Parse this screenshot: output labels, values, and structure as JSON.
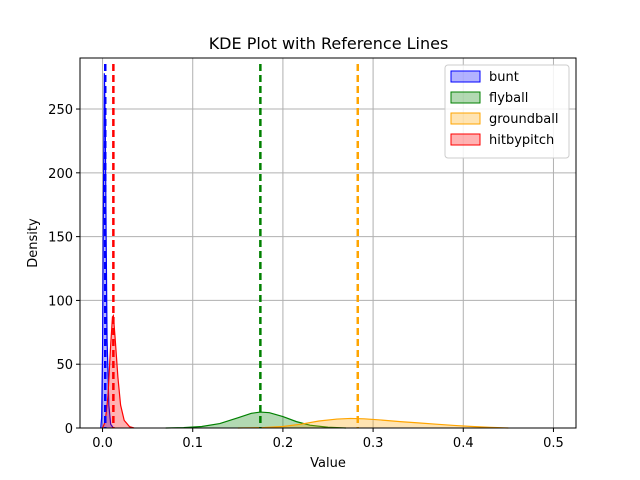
{
  "chart_data": {
    "type": "area",
    "title": "KDE Plot with Reference Lines",
    "xlabel": "Value",
    "ylabel": "Density",
    "xlim": [
      -0.025,
      0.525
    ],
    "ylim": [
      0,
      290
    ],
    "xticks": [
      0.0,
      0.1,
      0.2,
      0.3,
      0.4,
      0.5
    ],
    "xtick_labels": [
      "0.0",
      "0.1",
      "0.2",
      "0.3",
      "0.4",
      "0.5"
    ],
    "yticks": [
      0,
      50,
      100,
      150,
      200,
      250
    ],
    "ytick_labels": [
      "0",
      "50",
      "100",
      "150",
      "200",
      "250"
    ],
    "grid": true,
    "legend_position": "top-right",
    "series": [
      {
        "name": "bunt",
        "color": "#0000ff",
        "points": [
          [
            -0.002,
            0
          ],
          [
            -0.001,
            8
          ],
          [
            0.0,
            60
          ],
          [
            0.001,
            180
          ],
          [
            0.002,
            278
          ],
          [
            0.003,
            240
          ],
          [
            0.004,
            150
          ],
          [
            0.005,
            70
          ],
          [
            0.007,
            18
          ],
          [
            0.009,
            3
          ],
          [
            0.012,
            0
          ]
        ],
        "reference_line": 0.003
      },
      {
        "name": "flyball",
        "color": "#008000",
        "points": [
          [
            0.07,
            0
          ],
          [
            0.09,
            0.3
          ],
          [
            0.11,
            1.2
          ],
          [
            0.13,
            3.5
          ],
          [
            0.15,
            8
          ],
          [
            0.165,
            11.5
          ],
          [
            0.175,
            12.5
          ],
          [
            0.185,
            12
          ],
          [
            0.2,
            9
          ],
          [
            0.215,
            5
          ],
          [
            0.23,
            2.2
          ],
          [
            0.25,
            0.6
          ],
          [
            0.27,
            0
          ]
        ],
        "reference_line": 0.175
      },
      {
        "name": "groundball",
        "color": "#ffa500",
        "points": [
          [
            0.15,
            0
          ],
          [
            0.18,
            0.4
          ],
          [
            0.2,
            1.2
          ],
          [
            0.22,
            3
          ],
          [
            0.24,
            5.5
          ],
          [
            0.26,
            7
          ],
          [
            0.275,
            7.5
          ],
          [
            0.29,
            7.2
          ],
          [
            0.31,
            6.2
          ],
          [
            0.33,
            5
          ],
          [
            0.35,
            4
          ],
          [
            0.37,
            3
          ],
          [
            0.39,
            2
          ],
          [
            0.41,
            1.2
          ],
          [
            0.43,
            0.5
          ],
          [
            0.45,
            0
          ]
        ],
        "reference_line": 0.283
      },
      {
        "name": "hitbypitch",
        "color": "#ff0000",
        "points": [
          [
            0.0,
            0
          ],
          [
            0.003,
            5
          ],
          [
            0.006,
            25
          ],
          [
            0.009,
            65
          ],
          [
            0.011,
            87
          ],
          [
            0.012,
            88
          ],
          [
            0.014,
            70
          ],
          [
            0.017,
            40
          ],
          [
            0.02,
            18
          ],
          [
            0.024,
            6
          ],
          [
            0.03,
            1
          ],
          [
            0.035,
            0
          ]
        ],
        "reference_line": 0.012
      }
    ]
  }
}
